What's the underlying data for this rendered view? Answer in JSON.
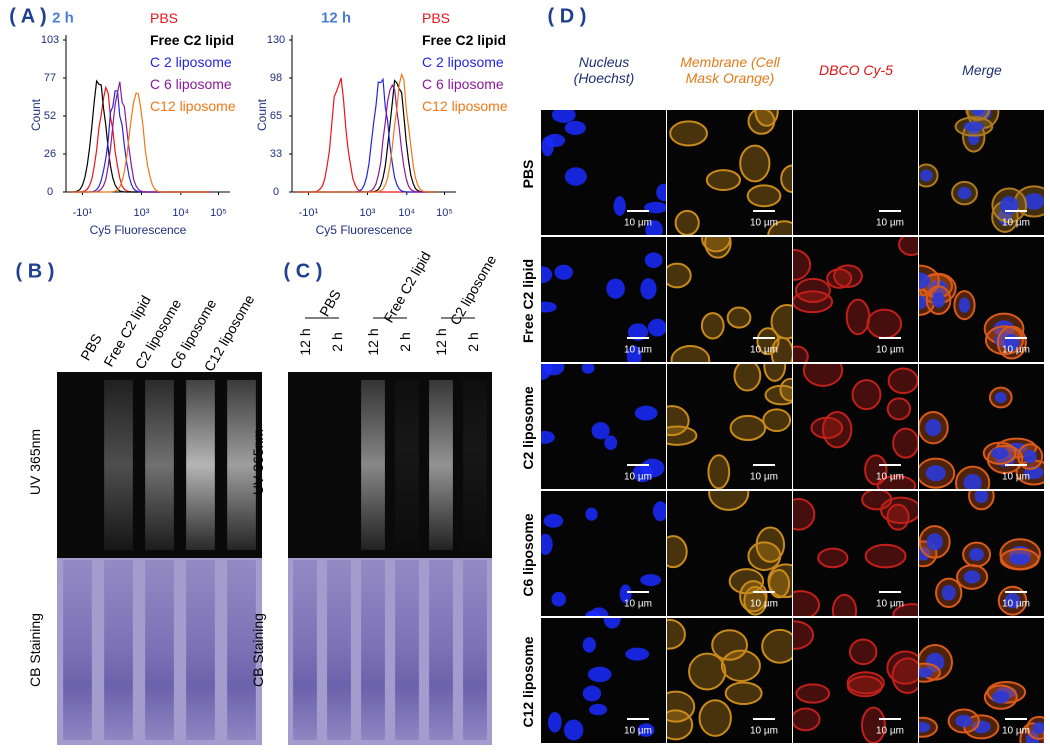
{
  "panel_a": {
    "label": "( A )",
    "x_label": "Cy5 Fluorescence",
    "y_label": "Count",
    "legend": [
      "PBS",
      "Free C2 lipid",
      "C 2 liposome",
      "C 6 liposome",
      "C12 liposome"
    ],
    "plots": [
      {
        "time": "2 h",
        "yticks": [
          "103",
          "77",
          "52",
          "26",
          "0"
        ],
        "xticks": [
          "-10¹",
          "10³",
          "10⁴",
          "10⁵"
        ]
      },
      {
        "time": "12 h",
        "yticks": [
          "130",
          "98",
          "65",
          "33",
          "0"
        ],
        "xticks": [
          "-10¹",
          "10³",
          "10⁴",
          "10⁵"
        ]
      }
    ]
  },
  "panel_b": {
    "label": "( B )",
    "lanes": [
      "PBS",
      "Free C2 lipid",
      "C2 liposome",
      "C6 liposome",
      "C12 liposome"
    ],
    "rows": [
      "UV 365nm",
      "CB Staining"
    ]
  },
  "panel_c": {
    "label": "( C )",
    "groups": [
      {
        "name": "PBS",
        "times": [
          "12 h",
          "2 h"
        ]
      },
      {
        "name": "Free C2 lipid",
        "times": [
          "12 h",
          "2 h"
        ]
      },
      {
        "name": "C2 liposome",
        "times": [
          "12 h",
          "2 h"
        ]
      }
    ],
    "rows": [
      "UV 365nm",
      "CB Staining"
    ]
  },
  "panel_d": {
    "label": "( D )",
    "columns": [
      "Nucleus (Hoechst)",
      "Membrane (Cell Mask Orange)",
      "DBCO Cy-5",
      "Merge"
    ],
    "rows": [
      "PBS",
      "Free C2 lipid",
      "C2 liposome",
      "C6 liposome",
      "C12 liposome"
    ],
    "scale_bar": "10 µm"
  }
}
